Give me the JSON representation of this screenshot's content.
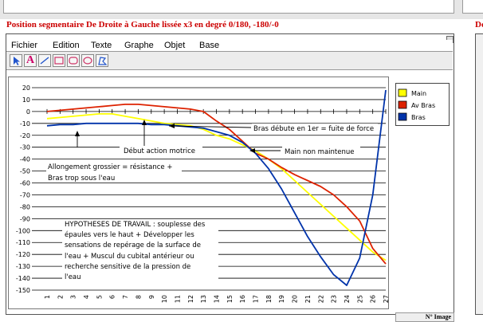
{
  "window": {
    "title": "Position segmentaire De Droite à Gauche lissée x3 en degré   0/180, -180/-0",
    "right_title": "De"
  },
  "menu": [
    "Fichier",
    "Edition",
    "Texte",
    "Graphe",
    "Objet",
    "Base"
  ],
  "toolbar": {
    "tools": [
      {
        "icon": "arrow-pointer-icon"
      },
      {
        "icon": "text-tool-icon",
        "label": "A"
      },
      {
        "icon": "line-tool-icon"
      },
      {
        "icon": "rectangle-tool-icon"
      },
      {
        "icon": "rounded-rectangle-tool-icon"
      },
      {
        "icon": "oval-tool-icon"
      },
      {
        "icon": "polygon-tool-icon"
      }
    ]
  },
  "caption": "N° Image",
  "colors": {
    "main": "#ffff00",
    "av_bras": "#dd2200",
    "bras": "#0033aa",
    "title": "#cc0000"
  },
  "chart_data": {
    "type": "line",
    "xlabel": "",
    "ylabel": "",
    "x": [
      1,
      2,
      3,
      4,
      5,
      6,
      7,
      8,
      9,
      10,
      11,
      12,
      13,
      14,
      15,
      16,
      17,
      18,
      19,
      20,
      21,
      22,
      23,
      24,
      25,
      26,
      27
    ],
    "xlim": [
      1,
      27
    ],
    "ylim": [
      -150,
      20
    ],
    "yticks": [
      20,
      10,
      0,
      -10,
      -20,
      -30,
      -40,
      -50,
      -60,
      -70,
      -80,
      -90,
      -100,
      -110,
      -120,
      -130,
      -140,
      -150
    ],
    "grid": true,
    "legend_position": "right",
    "series": [
      {
        "name": "Main",
        "color": "#ffff00",
        "values": [
          -6,
          -5,
          -4,
          -3,
          -2,
          -2,
          -4,
          -6,
          -8,
          -10,
          -11,
          -12,
          -15,
          -20,
          -23,
          -28,
          -33,
          -40,
          -48,
          -58,
          -68,
          -78,
          -88,
          -98,
          -108,
          -118,
          -125
        ]
      },
      {
        "name": "Av Bras",
        "color": "#dd2200",
        "values": [
          0,
          1,
          2,
          3,
          4,
          5,
          6,
          6,
          5,
          4,
          3,
          2,
          0,
          -8,
          -15,
          -25,
          -35,
          -40,
          -47,
          -53,
          -58,
          -63,
          -70,
          -80,
          -92,
          -115,
          -128
        ]
      },
      {
        "name": "Bras",
        "color": "#0033aa",
        "values": [
          -12,
          -11,
          -11,
          -10,
          -10,
          -10,
          -10,
          -10,
          -11,
          -11,
          -12,
          -13,
          -14,
          -17,
          -20,
          -26,
          -35,
          -48,
          -65,
          -85,
          -105,
          -122,
          -137,
          -146,
          -123,
          -70,
          18
        ]
      }
    ],
    "annotations": [
      "Bras débute en 1er = fuite de force",
      "Début action motrice",
      "Main non maintenue",
      "Allongement grossier = résistance +",
      "Bras trop sous l'eau",
      "HYPOTHESES DE TRAVAIL : souplesse des",
      "épaules vers le haut + Développer les",
      "sensations de repérage de la surface de",
      "l'eau + Muscul du cubital antérieur ou",
      "recherche sensitive de la pression de",
      "l'eau"
    ]
  }
}
